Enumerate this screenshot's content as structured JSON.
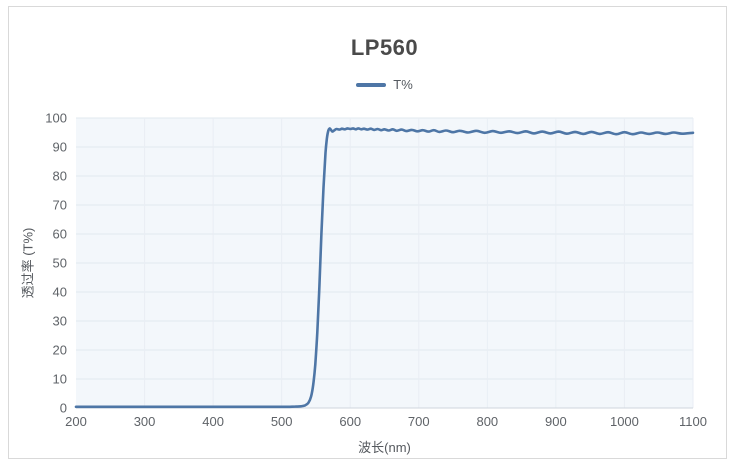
{
  "panel": {
    "background": "#ffffff",
    "border_color": "#d9d9d9"
  },
  "title": "LP560",
  "legend": {
    "label": "T%",
    "marker_color": "#4e76a6"
  },
  "chart_data": {
    "type": "line",
    "title": "LP560",
    "xlabel": "波长(nm)",
    "ylabel": "透过率 (T%)",
    "xlim": [
      200,
      1100
    ],
    "ylim": [
      0,
      100
    ],
    "x_ticks": [
      200,
      300,
      400,
      500,
      600,
      700,
      800,
      900,
      1000,
      1100
    ],
    "y_ticks": [
      0,
      10,
      20,
      30,
      40,
      50,
      60,
      70,
      80,
      90,
      100
    ],
    "grid": true,
    "legend_position": "top-center",
    "plot_bg": "#f3f7fb",
    "grid_color_h": "#e2e8ef",
    "grid_color_v": "#e9eef4",
    "axis_line_color": "#cfd6dd",
    "series": [
      {
        "name": "T%",
        "color": "#4e76a6",
        "line_width": 2.6,
        "points": [
          [
            200,
            0.4
          ],
          [
            220,
            0.4
          ],
          [
            240,
            0.4
          ],
          [
            260,
            0.4
          ],
          [
            280,
            0.4
          ],
          [
            300,
            0.4
          ],
          [
            320,
            0.4
          ],
          [
            340,
            0.4
          ],
          [
            360,
            0.4
          ],
          [
            380,
            0.4
          ],
          [
            400,
            0.4
          ],
          [
            420,
            0.4
          ],
          [
            440,
            0.4
          ],
          [
            460,
            0.4
          ],
          [
            480,
            0.4
          ],
          [
            500,
            0.4
          ],
          [
            510,
            0.4
          ],
          [
            520,
            0.5
          ],
          [
            528,
            0.6
          ],
          [
            534,
            0.9
          ],
          [
            539,
            1.8
          ],
          [
            543,
            4
          ],
          [
            546,
            8
          ],
          [
            549,
            15
          ],
          [
            552,
            26
          ],
          [
            555,
            42
          ],
          [
            558,
            60
          ],
          [
            561,
            76
          ],
          [
            564,
            88
          ],
          [
            566,
            93
          ],
          [
            568,
            95.6
          ],
          [
            570,
            96.4
          ],
          [
            572,
            95.9
          ],
          [
            574,
            95.3
          ],
          [
            577,
            95.8
          ],
          [
            580,
            96.2
          ],
          [
            584,
            96.0
          ],
          [
            588,
            96.3
          ],
          [
            592,
            96.1
          ],
          [
            596,
            96.4
          ],
          [
            600,
            96.2
          ],
          [
            604,
            96.4
          ],
          [
            608,
            96.1
          ],
          [
            612,
            96.4
          ],
          [
            616,
            96.1
          ],
          [
            620,
            96.3
          ],
          [
            625,
            96.0
          ],
          [
            630,
            96.3
          ],
          [
            635,
            95.9
          ],
          [
            640,
            96.2
          ],
          [
            645,
            95.8
          ],
          [
            650,
            96.1
          ],
          [
            656,
            95.7
          ],
          [
            662,
            96.1
          ],
          [
            668,
            95.6
          ],
          [
            675,
            96.0
          ],
          [
            682,
            95.5
          ],
          [
            690,
            95.9
          ],
          [
            698,
            95.4
          ],
          [
            706,
            95.8
          ],
          [
            714,
            95.3
          ],
          [
            722,
            95.8
          ],
          [
            730,
            95.2
          ],
          [
            740,
            95.7
          ],
          [
            750,
            95.1
          ],
          [
            760,
            95.6
          ],
          [
            772,
            95.0
          ],
          [
            784,
            95.6
          ],
          [
            796,
            94.9
          ],
          [
            808,
            95.5
          ],
          [
            820,
            94.9
          ],
          [
            832,
            95.4
          ],
          [
            844,
            94.8
          ],
          [
            856,
            95.4
          ],
          [
            868,
            94.7
          ],
          [
            880,
            95.3
          ],
          [
            892,
            94.7
          ],
          [
            904,
            95.3
          ],
          [
            916,
            94.6
          ],
          [
            928,
            95.2
          ],
          [
            940,
            94.5
          ],
          [
            952,
            95.2
          ],
          [
            964,
            94.5
          ],
          [
            976,
            95.1
          ],
          [
            988,
            94.4
          ],
          [
            1000,
            95.1
          ],
          [
            1012,
            94.4
          ],
          [
            1024,
            95.0
          ],
          [
            1036,
            94.5
          ],
          [
            1048,
            95.0
          ],
          [
            1060,
            94.5
          ],
          [
            1072,
            95.0
          ],
          [
            1084,
            94.6
          ],
          [
            1100,
            94.9
          ]
        ]
      }
    ]
  }
}
